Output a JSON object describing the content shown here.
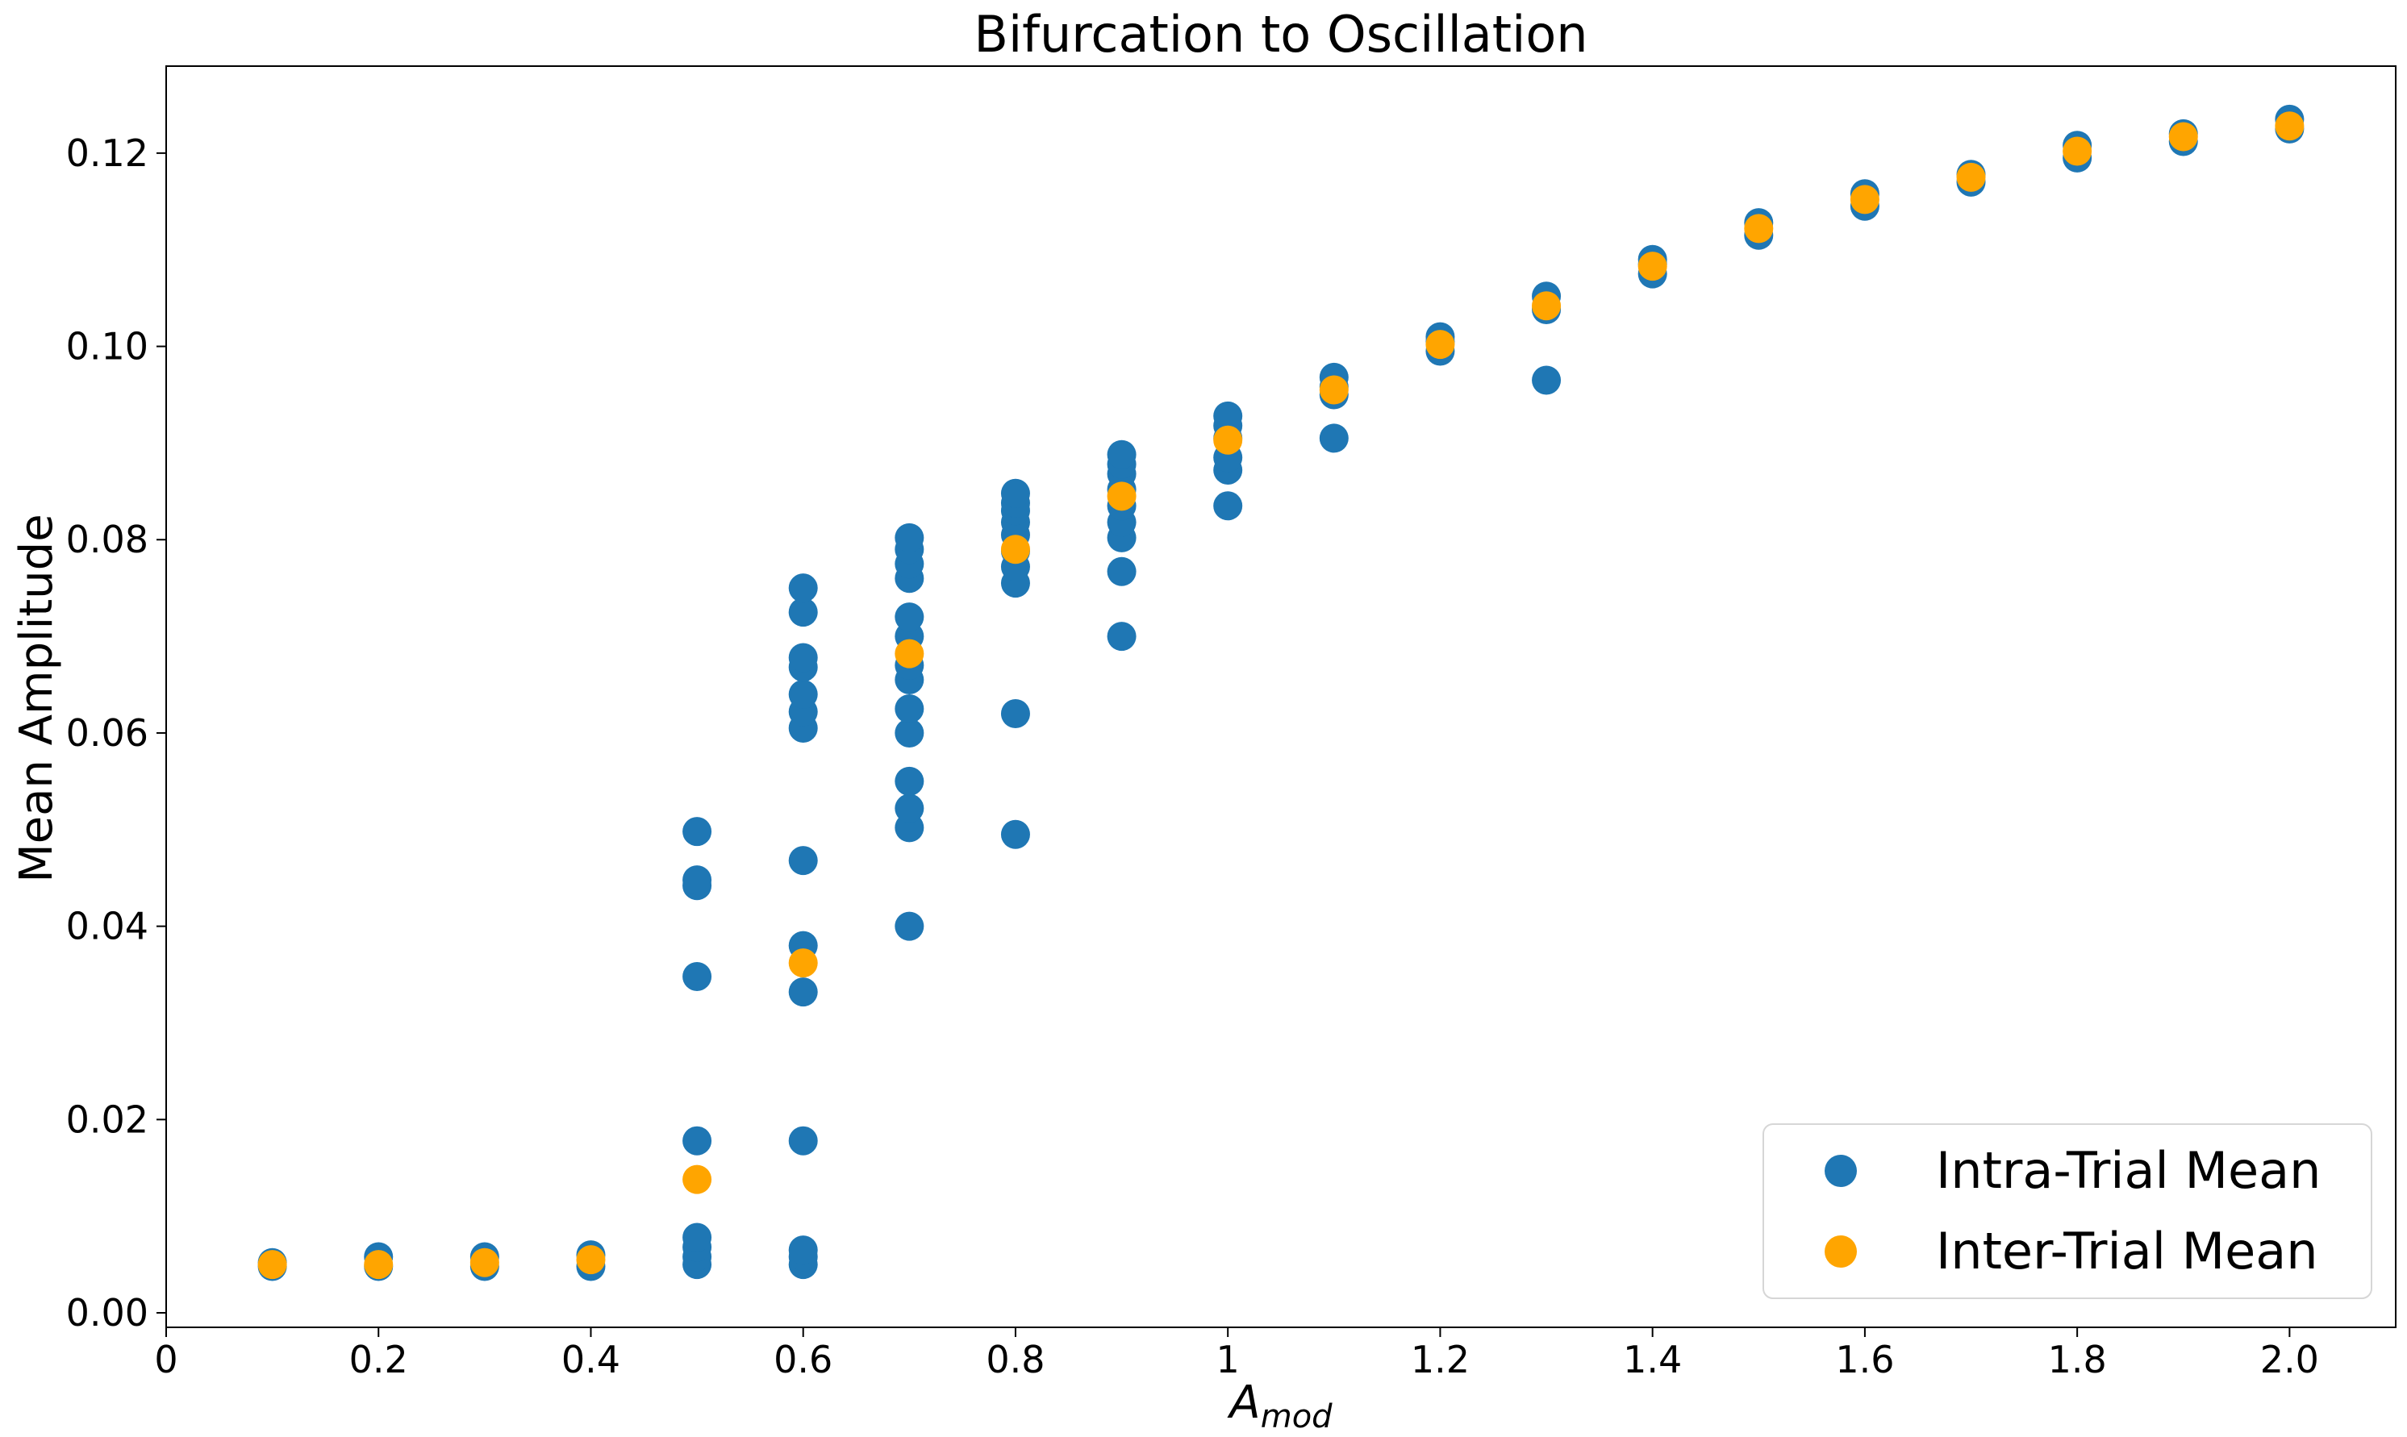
{
  "chart_data": {
    "type": "scatter",
    "title": "Bifurcation to Oscillation",
    "xlabel": "A",
    "xlabel_sub": "mod",
    "ylabel": "Mean Amplitude",
    "xlim": [
      0,
      2.1
    ],
    "ylim": [
      -0.0015,
      0.129
    ],
    "xticks": [
      0,
      0.2,
      0.4,
      0.6,
      0.8,
      1.0,
      1.2,
      1.4,
      1.6,
      1.8,
      2.0
    ],
    "xtick_labels": [
      "0",
      "0.2",
      "0.4",
      "0.6",
      "0.8",
      "1",
      "1.2",
      "1.4",
      "1.6",
      "1.8",
      "2.0"
    ],
    "yticks": [
      0.0,
      0.02,
      0.04,
      0.06,
      0.08,
      0.1,
      0.12
    ],
    "ytick_labels": [
      "0.00",
      "0.02",
      "0.04",
      "0.06",
      "0.08",
      "0.10",
      "0.12"
    ],
    "legend_position": "bottom-right",
    "grid": false,
    "series": [
      {
        "name": "Intra-Trial Mean",
        "color": "#1f77b4",
        "points": [
          [
            0.1,
            0.0048
          ],
          [
            0.1,
            0.0052
          ],
          [
            0.2,
            0.0048
          ],
          [
            0.2,
            0.0058
          ],
          [
            0.3,
            0.0048
          ],
          [
            0.3,
            0.0058
          ],
          [
            0.4,
            0.0048
          ],
          [
            0.4,
            0.006
          ],
          [
            0.5,
            0.005
          ],
          [
            0.5,
            0.0058
          ],
          [
            0.5,
            0.0068
          ],
          [
            0.5,
            0.0078
          ],
          [
            0.5,
            0.0178
          ],
          [
            0.5,
            0.0348
          ],
          [
            0.5,
            0.0442
          ],
          [
            0.5,
            0.0448
          ],
          [
            0.5,
            0.0498
          ],
          [
            0.6,
            0.005
          ],
          [
            0.6,
            0.0058
          ],
          [
            0.6,
            0.0065
          ],
          [
            0.6,
            0.0178
          ],
          [
            0.6,
            0.0332
          ],
          [
            0.6,
            0.038
          ],
          [
            0.6,
            0.0468
          ],
          [
            0.6,
            0.0605
          ],
          [
            0.6,
            0.0622
          ],
          [
            0.6,
            0.064
          ],
          [
            0.6,
            0.0668
          ],
          [
            0.6,
            0.0678
          ],
          [
            0.6,
            0.0725
          ],
          [
            0.6,
            0.075
          ],
          [
            0.7,
            0.04
          ],
          [
            0.7,
            0.0502
          ],
          [
            0.7,
            0.0522
          ],
          [
            0.7,
            0.055
          ],
          [
            0.7,
            0.06
          ],
          [
            0.7,
            0.0625
          ],
          [
            0.7,
            0.0655
          ],
          [
            0.7,
            0.067
          ],
          [
            0.7,
            0.07
          ],
          [
            0.7,
            0.072
          ],
          [
            0.7,
            0.076
          ],
          [
            0.7,
            0.0775
          ],
          [
            0.7,
            0.079
          ],
          [
            0.7,
            0.0802
          ],
          [
            0.8,
            0.0495
          ],
          [
            0.8,
            0.062
          ],
          [
            0.8,
            0.0755
          ],
          [
            0.8,
            0.0772
          ],
          [
            0.8,
            0.0788
          ],
          [
            0.8,
            0.0805
          ],
          [
            0.8,
            0.0818
          ],
          [
            0.8,
            0.083
          ],
          [
            0.8,
            0.0838
          ],
          [
            0.8,
            0.0848
          ],
          [
            0.9,
            0.07
          ],
          [
            0.9,
            0.0767
          ],
          [
            0.9,
            0.0802
          ],
          [
            0.9,
            0.0818
          ],
          [
            0.9,
            0.0835
          ],
          [
            0.9,
            0.0852
          ],
          [
            0.9,
            0.0868
          ],
          [
            0.9,
            0.0878
          ],
          [
            0.9,
            0.0888
          ],
          [
            1.0,
            0.0835
          ],
          [
            1.0,
            0.0872
          ],
          [
            1.0,
            0.0885
          ],
          [
            1.0,
            0.0905
          ],
          [
            1.0,
            0.0918
          ],
          [
            1.0,
            0.0928
          ],
          [
            1.1,
            0.0905
          ],
          [
            1.1,
            0.095
          ],
          [
            1.1,
            0.0958
          ],
          [
            1.1,
            0.0968
          ],
          [
            1.2,
            0.0995
          ],
          [
            1.2,
            0.1005
          ],
          [
            1.2,
            0.101
          ],
          [
            1.3,
            0.0965
          ],
          [
            1.3,
            0.1038
          ],
          [
            1.3,
            0.1052
          ],
          [
            1.4,
            0.1075
          ],
          [
            1.4,
            0.1085
          ],
          [
            1.4,
            0.109
          ],
          [
            1.5,
            0.1115
          ],
          [
            1.5,
            0.1128
          ],
          [
            1.6,
            0.1145
          ],
          [
            1.6,
            0.1158
          ],
          [
            1.7,
            0.117
          ],
          [
            1.7,
            0.1178
          ],
          [
            1.8,
            0.1195
          ],
          [
            1.8,
            0.1208
          ],
          [
            1.9,
            0.1212
          ],
          [
            1.9,
            0.122
          ],
          [
            2.0,
            0.1225
          ],
          [
            2.0,
            0.1235
          ]
        ]
      },
      {
        "name": "Inter-Trial Mean",
        "color": "#ffa500",
        "points": [
          [
            0.1,
            0.005
          ],
          [
            0.2,
            0.005
          ],
          [
            0.3,
            0.0052
          ],
          [
            0.4,
            0.0055
          ],
          [
            0.5,
            0.0138
          ],
          [
            0.6,
            0.0362
          ],
          [
            0.7,
            0.0682
          ],
          [
            0.8,
            0.079
          ],
          [
            0.9,
            0.0845
          ],
          [
            1.0,
            0.0903
          ],
          [
            1.1,
            0.0955
          ],
          [
            1.2,
            0.1002
          ],
          [
            1.3,
            0.1042
          ],
          [
            1.4,
            0.1083
          ],
          [
            1.5,
            0.1122
          ],
          [
            1.6,
            0.1152
          ],
          [
            1.7,
            0.1175
          ],
          [
            1.8,
            0.1202
          ],
          [
            1.9,
            0.1217
          ],
          [
            2.0,
            0.1228
          ]
        ]
      }
    ]
  }
}
